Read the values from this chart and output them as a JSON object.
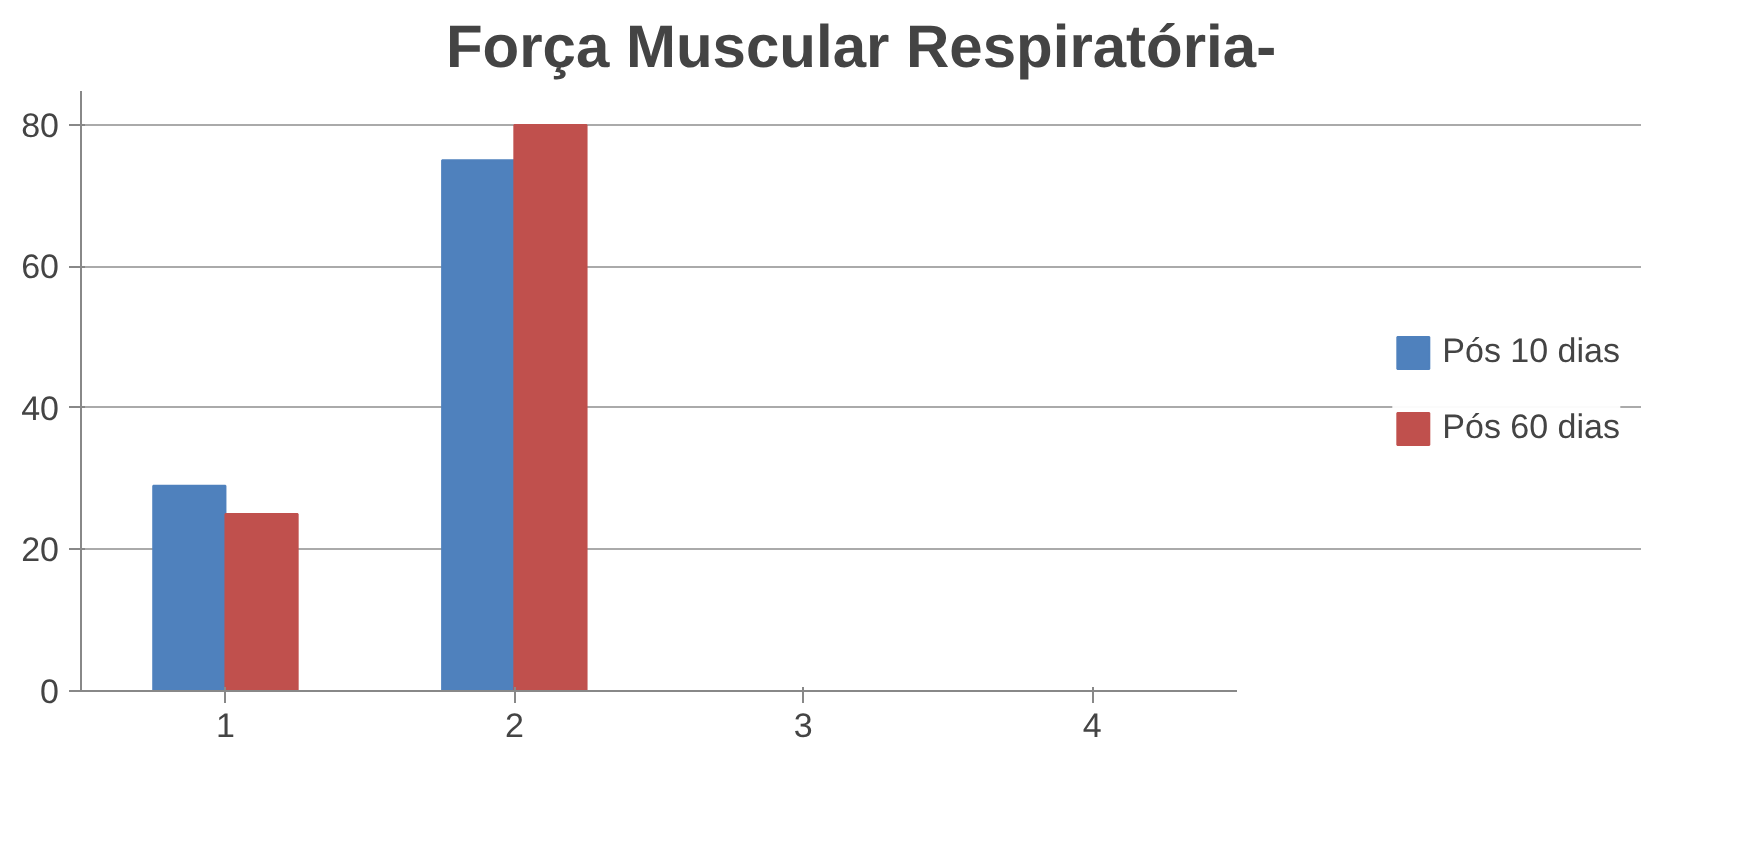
{
  "chart_data": {
    "type": "bar",
    "title": "Força Muscular Respiratória-",
    "categories": [
      "1",
      "2",
      "3",
      "4"
    ],
    "series": [
      {
        "name": "Pós 10 dias",
        "color": "#4f81bd",
        "values": [
          29,
          75,
          0,
          0
        ]
      },
      {
        "name": "Pós 60 dias",
        "color": "#c0504d",
        "values": [
          25,
          80,
          0,
          0
        ]
      }
    ],
    "ylim": [
      0,
      80
    ],
    "yticks": [
      0,
      20,
      40,
      60,
      80
    ],
    "grid": "y",
    "legend": "right"
  }
}
